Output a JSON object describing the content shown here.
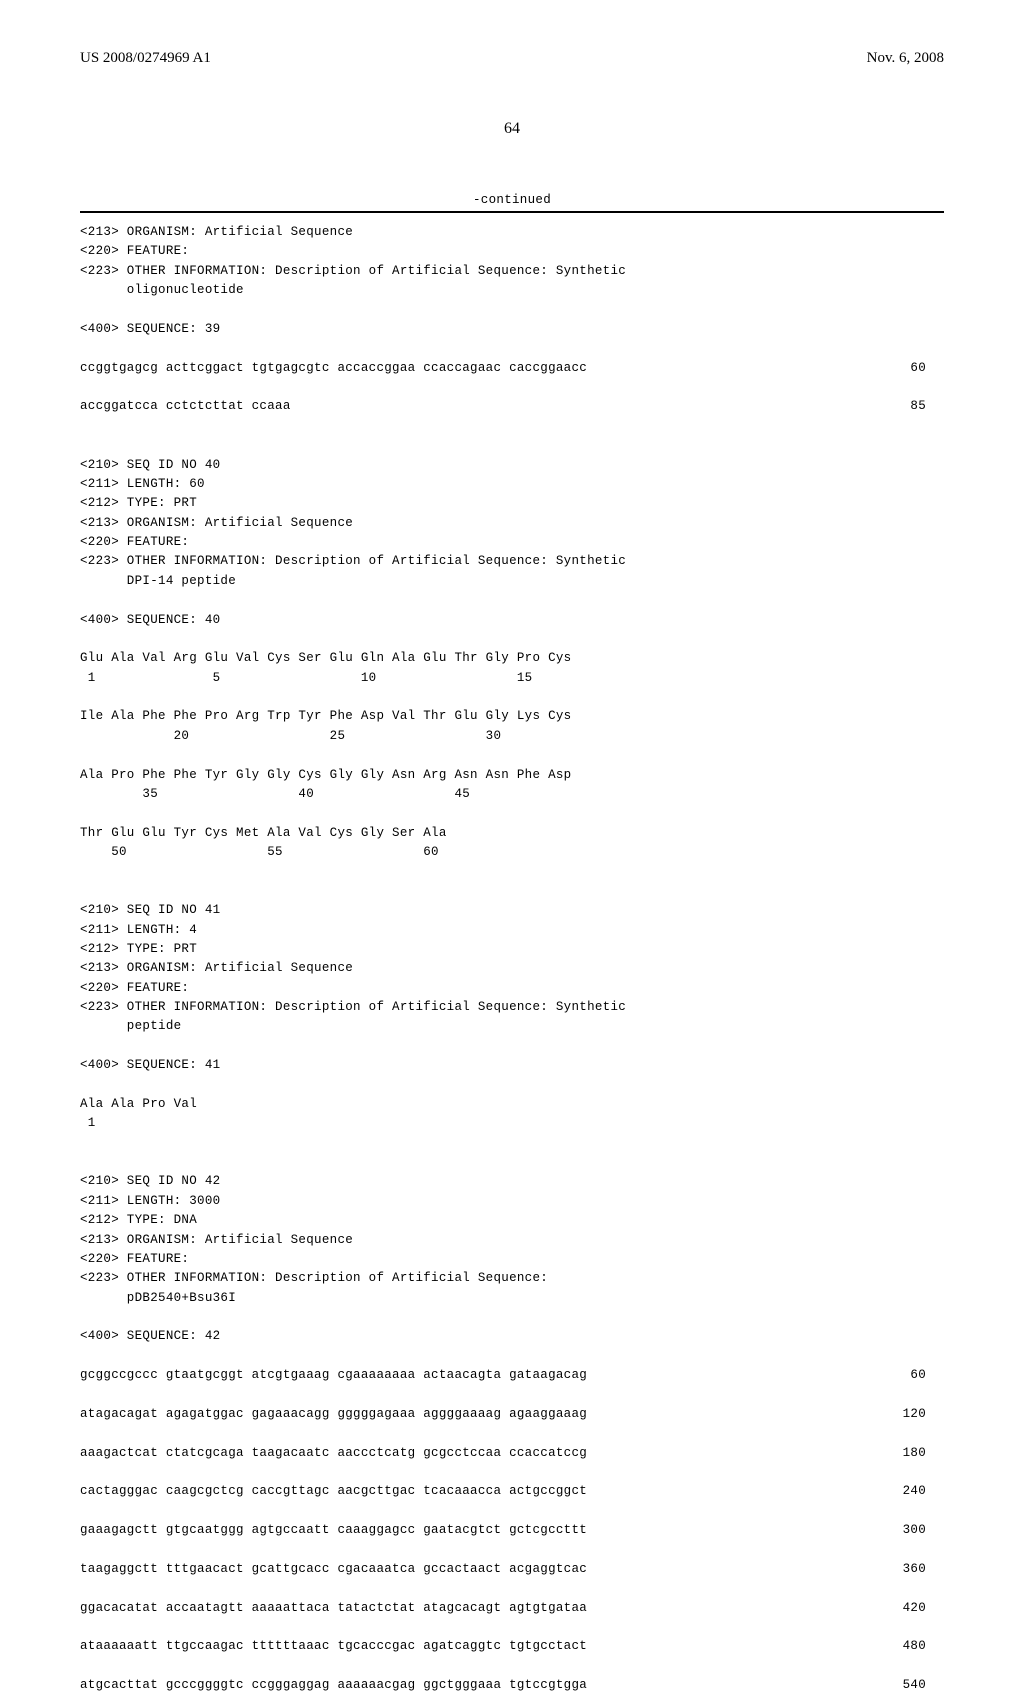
{
  "header": {
    "doc_number": "US 2008/0274969 A1",
    "doc_date": "Nov. 6, 2008",
    "page_number": "64"
  },
  "continued_label": "-continued",
  "entries": [
    {
      "tags": [
        "<213> ORGANISM: Artificial Sequence",
        "<220> FEATURE:",
        "<223> OTHER INFORMATION: Description of Artificial Sequence: Synthetic",
        "      oligonucleotide",
        "",
        "<400> SEQUENCE: 39",
        ""
      ],
      "seq_rows": [
        {
          "content": "ccggtgagcg acttcggact tgtgagcgtc accaccggaa ccaccagaac caccggaacc",
          "pos": "60"
        },
        {
          "content": "",
          "pos": ""
        },
        {
          "content": "accggatcca cctctcttat ccaaa",
          "pos": "85"
        }
      ]
    },
    {
      "tags": [
        "",
        "",
        "<210> SEQ ID NO 40",
        "<211> LENGTH: 60",
        "<212> TYPE: PRT",
        "<213> ORGANISM: Artificial Sequence",
        "<220> FEATURE:",
        "<223> OTHER INFORMATION: Description of Artificial Sequence: Synthetic",
        "      DPI-14 peptide",
        "",
        "<400> SEQUENCE: 40",
        "",
        "Glu Ala Val Arg Glu Val Cys Ser Glu Gln Ala Glu Thr Gly Pro Cys",
        " 1               5                  10                  15",
        "",
        "Ile Ala Phe Phe Pro Arg Trp Tyr Phe Asp Val Thr Glu Gly Lys Cys",
        "            20                  25                  30",
        "",
        "Ala Pro Phe Phe Tyr Gly Gly Cys Gly Gly Asn Arg Asn Asn Phe Asp",
        "        35                  40                  45",
        "",
        "Thr Glu Glu Tyr Cys Met Ala Val Cys Gly Ser Ala",
        "    50                  55                  60"
      ],
      "seq_rows": []
    },
    {
      "tags": [
        "",
        "",
        "<210> SEQ ID NO 41",
        "<211> LENGTH: 4",
        "<212> TYPE: PRT",
        "<213> ORGANISM: Artificial Sequence",
        "<220> FEATURE:",
        "<223> OTHER INFORMATION: Description of Artificial Sequence: Synthetic",
        "      peptide",
        "",
        "<400> SEQUENCE: 41",
        "",
        "Ala Ala Pro Val",
        " 1"
      ],
      "seq_rows": []
    },
    {
      "tags": [
        "",
        "",
        "<210> SEQ ID NO 42",
        "<211> LENGTH: 3000",
        "<212> TYPE: DNA",
        "<213> ORGANISM: Artificial Sequence",
        "<220> FEATURE:",
        "<223> OTHER INFORMATION: Description of Artificial Sequence:",
        "      pDB2540+Bsu36I",
        "",
        "<400> SEQUENCE: 42",
        ""
      ],
      "seq_rows": [
        {
          "content": "gcggccgccc gtaatgcggt atcgtgaaag cgaaaaaaaa actaacagta gataagacag",
          "pos": "60"
        },
        {
          "content": "",
          "pos": ""
        },
        {
          "content": "atagacagat agagatggac gagaaacagg gggggagaaa aggggaaaag agaaggaaag",
          "pos": "120"
        },
        {
          "content": "",
          "pos": ""
        },
        {
          "content": "aaagactcat ctatcgcaga taagacaatc aaccctcatg gcgcctccaa ccaccatccg",
          "pos": "180"
        },
        {
          "content": "",
          "pos": ""
        },
        {
          "content": "cactagggac caagcgctcg caccgttagc aacgcttgac tcacaaacca actgccggct",
          "pos": "240"
        },
        {
          "content": "",
          "pos": ""
        },
        {
          "content": "gaaagagctt gtgcaatggg agtgccaatt caaaggagcc gaatacgtct gctcgccttt",
          "pos": "300"
        },
        {
          "content": "",
          "pos": ""
        },
        {
          "content": "taagaggctt tttgaacact gcattgcacc cgacaaatca gccactaact acgaggtcac",
          "pos": "360"
        },
        {
          "content": "",
          "pos": ""
        },
        {
          "content": "ggacacatat accaatagtt aaaaattaca tatactctat atagcacagt agtgtgataa",
          "pos": "420"
        },
        {
          "content": "",
          "pos": ""
        },
        {
          "content": "ataaaaaatt ttgccaagac ttttttaaac tgcacccgac agatcaggtc tgtgcctact",
          "pos": "480"
        },
        {
          "content": "",
          "pos": ""
        },
        {
          "content": "atgcacttat gcccggggtc ccgggaggag aaaaaacgag ggctgggaaa tgtccgtgga",
          "pos": "540"
        }
      ]
    }
  ]
}
